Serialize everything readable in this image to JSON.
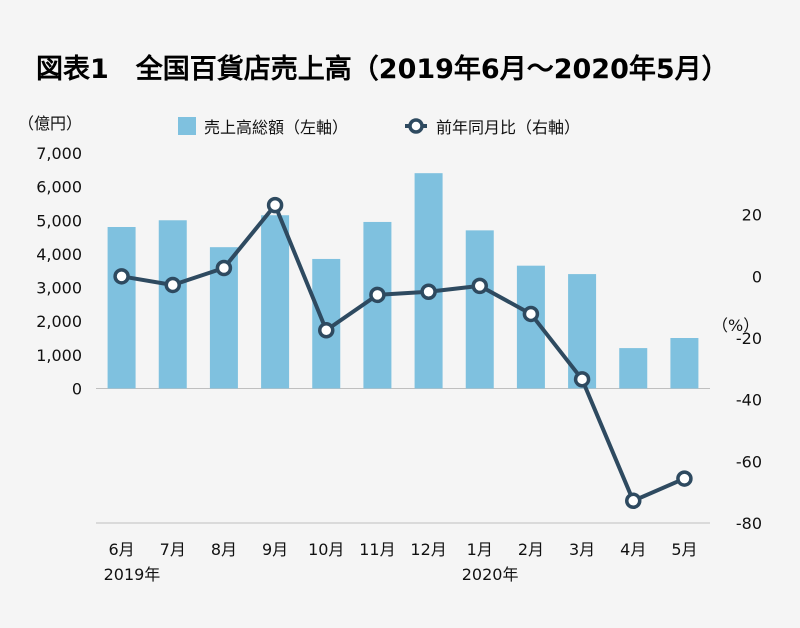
{
  "chart_data": {
    "type": "bar",
    "title": "図表1　全国百貨店売上高（2019年6月～2020年5月）",
    "categories": [
      "6月",
      "7月",
      "8月",
      "9月",
      "10月",
      "11月",
      "12月",
      "1月",
      "2月",
      "3月",
      "4月",
      "5月"
    ],
    "year_labels": [
      {
        "category_index": 0,
        "label": "2019年"
      },
      {
        "category_index": 7,
        "label": "2020年"
      }
    ],
    "left_axis": {
      "unit_label": "（億円）",
      "ylim": [
        -4000,
        7000
      ],
      "ticks": [
        0,
        1000,
        2000,
        3000,
        4000,
        5000,
        6000,
        7000
      ],
      "tick_labels": [
        "0",
        "1,000",
        "2,000",
        "3,000",
        "4,000",
        "5,000",
        "6,000",
        "7,000"
      ]
    },
    "right_axis": {
      "unit_label": "（%）",
      "ylim": [
        -80,
        40
      ],
      "ticks": [
        -80,
        -60,
        -40,
        -20,
        0,
        20
      ],
      "tick_labels": [
        "-80",
        "-60",
        "-40",
        "-20",
        "0",
        "20"
      ]
    },
    "series": [
      {
        "name": "売上高総額（左軸）",
        "type": "bar",
        "axis": "left",
        "color": "#7fc1df",
        "values": [
          4800,
          5000,
          4200,
          5150,
          3850,
          4950,
          6400,
          4700,
          3650,
          3400,
          1200,
          1500
        ]
      },
      {
        "name": "前年同月比（右軸）",
        "type": "line",
        "axis": "right",
        "color": "#2e4a60",
        "values": [
          0,
          -2.8,
          2.7,
          23.1,
          -17.5,
          -6.0,
          -5.0,
          -3.1,
          -12.2,
          -33.4,
          -72.8,
          -65.6
        ]
      }
    ],
    "grid": false,
    "legend": "top-center"
  }
}
